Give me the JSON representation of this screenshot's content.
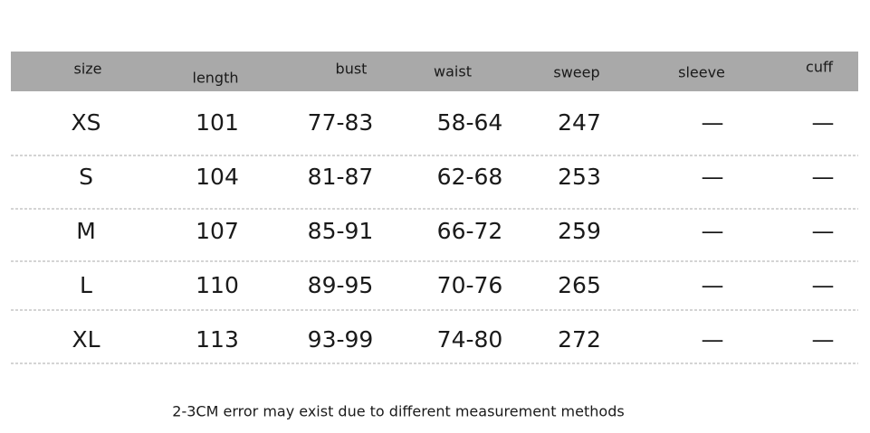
{
  "table": {
    "header": [
      "size",
      "length",
      "bust",
      "waist",
      "sweep",
      "sleeve",
      "cuff"
    ],
    "rows": [
      [
        "XS",
        "101",
        "77-83",
        "58-64",
        "247",
        "—",
        "—"
      ],
      [
        "S",
        "104",
        "81-87",
        "62-68",
        "253",
        "—",
        "—"
      ],
      [
        "M",
        "107",
        "85-91",
        "66-72",
        "259",
        "—",
        "—"
      ],
      [
        "L",
        "110",
        "89-95",
        "70-76",
        "265",
        "—",
        "—"
      ],
      [
        "XL",
        "113",
        "93-99",
        "74-80",
        "272",
        "—",
        "—"
      ]
    ]
  },
  "footnote": "2-3CM error may exist due to different measurement methods"
}
